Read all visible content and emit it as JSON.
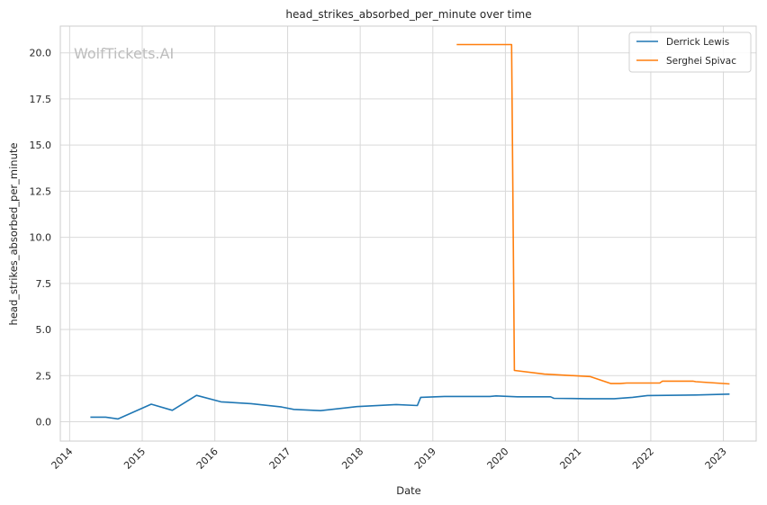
{
  "chart_data": {
    "type": "line",
    "title": "head_strikes_absorbed_per_minute over time",
    "xlabel": "Date",
    "ylabel": "head_strikes_absorbed_per_minute",
    "watermark": "WolfTickets.AI",
    "xlim": [
      "2013-11-15",
      "2023-06-15"
    ],
    "ylim": [
      -1.05,
      21.45
    ],
    "x_ticks": [
      "2014-01-01",
      "2015-01-01",
      "2016-01-01",
      "2017-01-01",
      "2018-01-01",
      "2019-01-01",
      "2020-01-01",
      "2021-01-01",
      "2022-01-01",
      "2023-01-01"
    ],
    "x_tick_labels": [
      "2014",
      "2015",
      "2016",
      "2017",
      "2018",
      "2019",
      "2020",
      "2021",
      "2022",
      "2023"
    ],
    "y_ticks": [
      0.0,
      2.5,
      5.0,
      7.5,
      10.0,
      12.5,
      15.0,
      17.5,
      20.0
    ],
    "y_tick_labels": [
      "0.0",
      "2.5",
      "5.0",
      "7.5",
      "10.0",
      "12.5",
      "15.0",
      "17.5",
      "20.0"
    ],
    "grid": true,
    "legend_position": "top-right",
    "series": [
      {
        "name": "Derrick Lewis",
        "color": "#1f77b4",
        "points": [
          [
            "2014-04-15",
            0.25
          ],
          [
            "2014-07-01",
            0.25
          ],
          [
            "2014-09-01",
            0.15
          ],
          [
            "2015-02-15",
            0.95
          ],
          [
            "2015-06-01",
            0.62
          ],
          [
            "2015-10-01",
            1.43
          ],
          [
            "2016-02-01",
            1.08
          ],
          [
            "2016-07-01",
            0.98
          ],
          [
            "2016-12-01",
            0.8
          ],
          [
            "2017-02-01",
            0.67
          ],
          [
            "2017-06-15",
            0.6
          ],
          [
            "2017-12-15",
            0.82
          ],
          [
            "2018-07-01",
            0.93
          ],
          [
            "2018-10-15",
            0.88
          ],
          [
            "2018-11-01",
            1.32
          ],
          [
            "2019-03-01",
            1.37
          ],
          [
            "2019-10-15",
            1.37
          ],
          [
            "2019-11-15",
            1.4
          ],
          [
            "2020-03-01",
            1.35
          ],
          [
            "2020-08-15",
            1.35
          ],
          [
            "2020-09-01",
            1.27
          ],
          [
            "2021-02-15",
            1.25
          ],
          [
            "2021-07-01",
            1.25
          ],
          [
            "2021-10-01",
            1.32
          ],
          [
            "2021-12-15",
            1.42
          ],
          [
            "2022-08-15",
            1.45
          ],
          [
            "2023-02-01",
            1.5
          ]
        ]
      },
      {
        "name": "Serghei Spivac",
        "color": "#ff7f0e",
        "points": [
          [
            "2019-05-01",
            20.45
          ],
          [
            "2020-02-01",
            20.45
          ],
          [
            "2020-02-15",
            2.78
          ],
          [
            "2020-07-15",
            2.58
          ],
          [
            "2021-03-01",
            2.45
          ],
          [
            "2021-06-15",
            2.07
          ],
          [
            "2021-08-01",
            2.07
          ],
          [
            "2021-09-01",
            2.1
          ],
          [
            "2022-02-15",
            2.1
          ],
          [
            "2022-03-01",
            2.2
          ],
          [
            "2022-08-01",
            2.2
          ],
          [
            "2022-08-15",
            2.17
          ],
          [
            "2023-02-01",
            2.05
          ]
        ]
      }
    ]
  }
}
